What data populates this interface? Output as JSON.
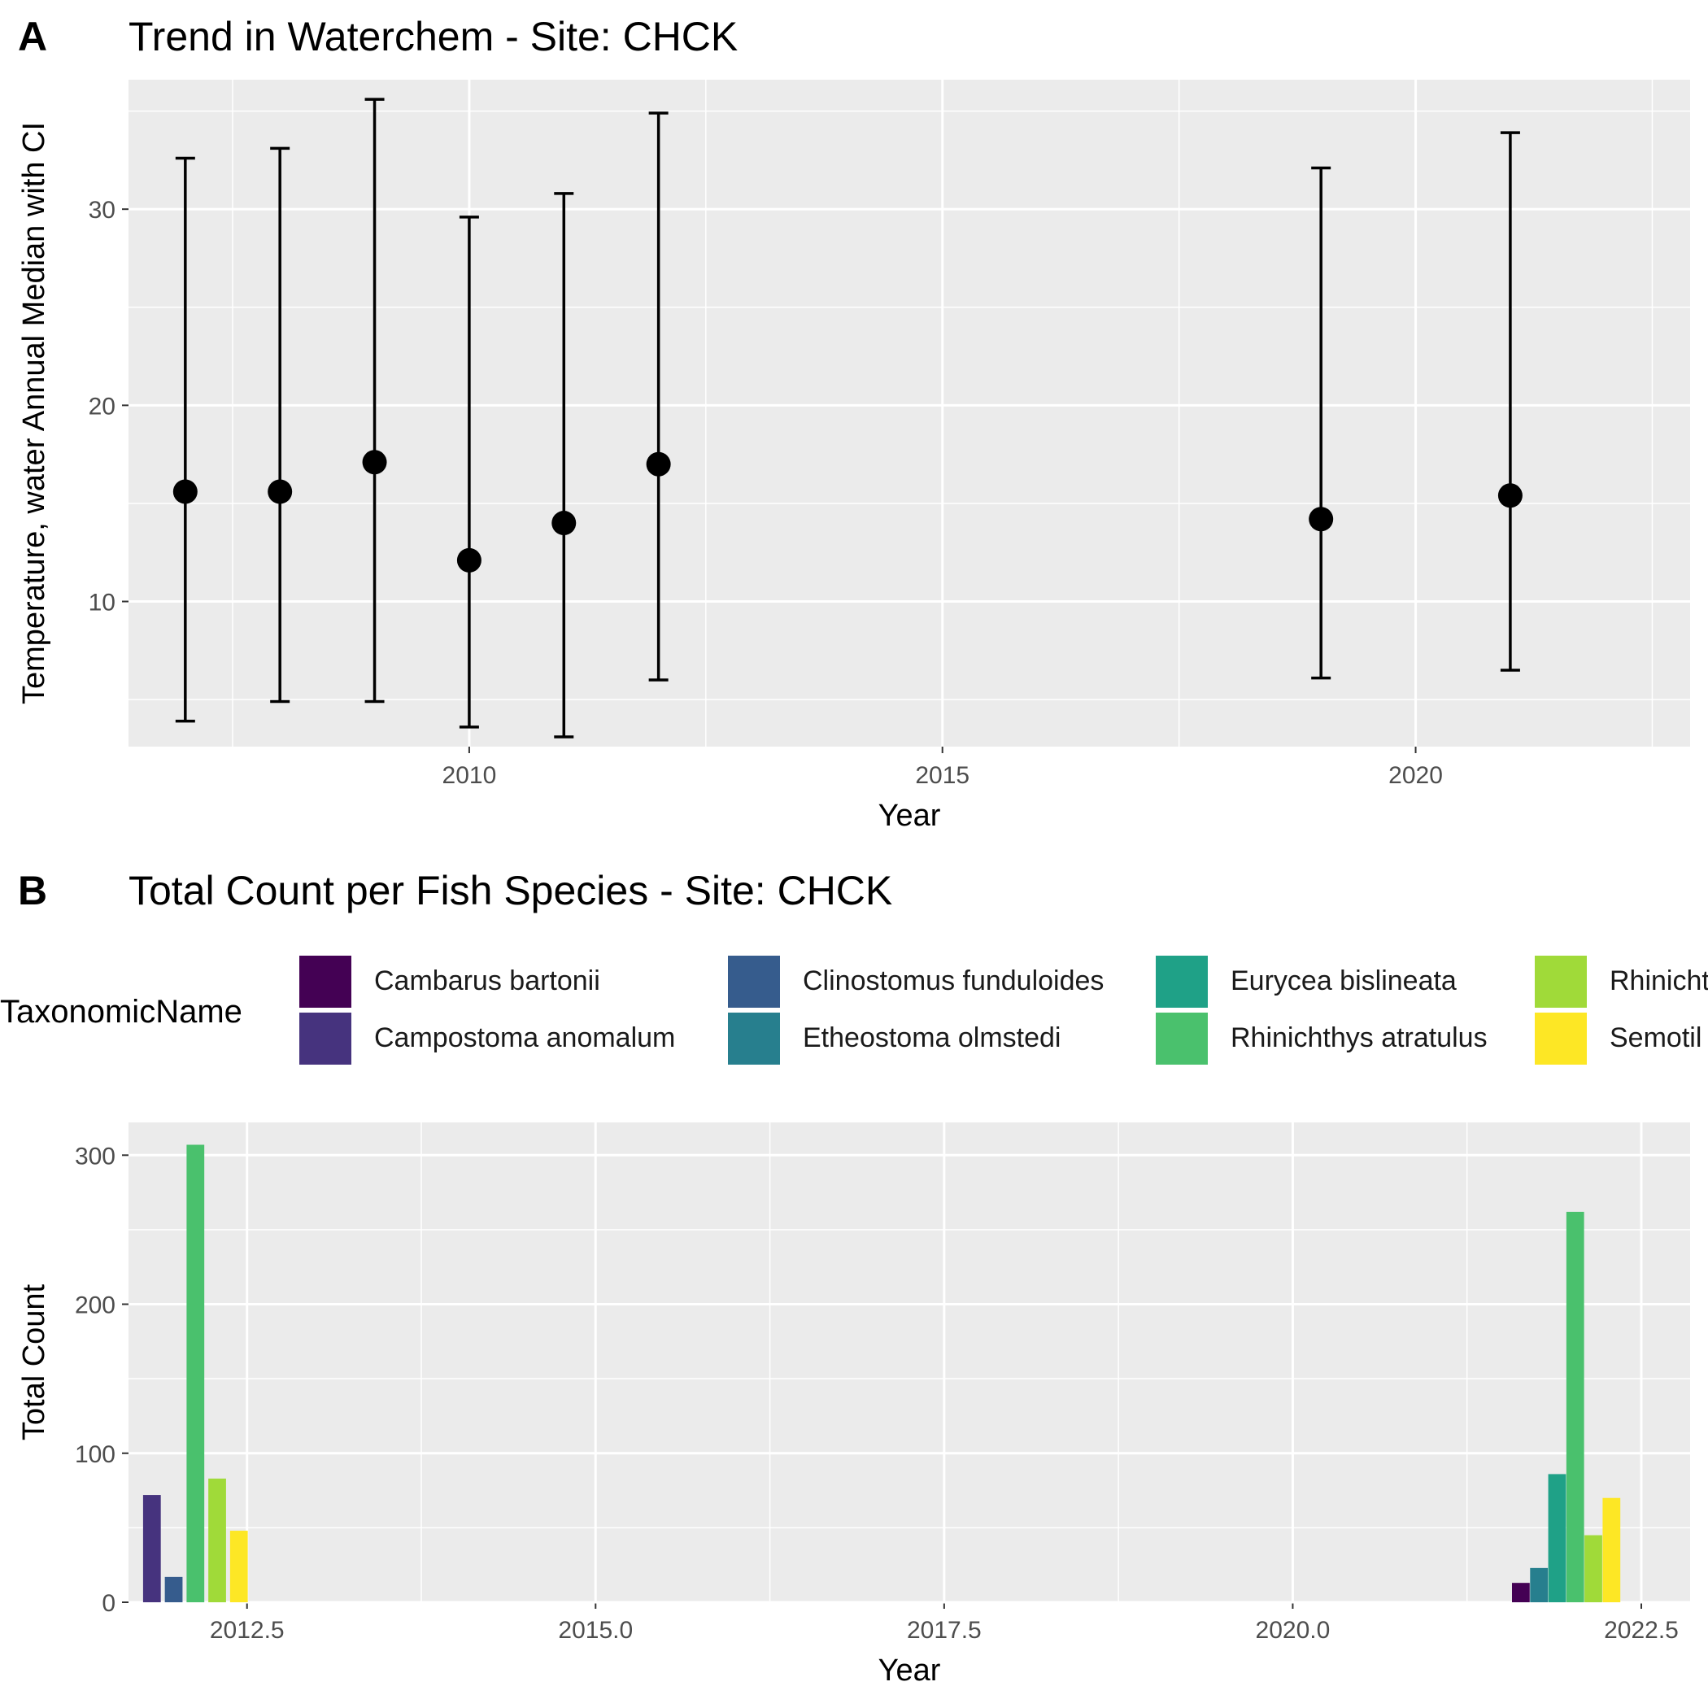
{
  "panel_a": {
    "tag": "A",
    "title": "Trend in Waterchem - Site: CHCK",
    "xlabel": "Year",
    "ylabel": "Temperature, water Annual Median with CI"
  },
  "panel_b": {
    "tag": "B",
    "title": "Total Count per Fish Species - Site: CHCK",
    "xlabel": "Year",
    "ylabel": "Total Count",
    "legend_title": "TaxonomicName"
  },
  "chart_data": [
    {
      "type": "scatter",
      "title": "Trend in Waterchem - Site: CHCK",
      "xlabel": "Year",
      "ylabel": "Temperature, water Annual Median with CI",
      "xlim": [
        2006.4,
        2022.9
      ],
      "ylim": [
        2.6,
        36.6
      ],
      "xticks": [
        2010,
        2015,
        2020
      ],
      "yticks": [
        10,
        20,
        30
      ],
      "grid": true,
      "points": [
        {
          "x": 2007,
          "y": 15.6,
          "lo": 3.9,
          "hi": 32.6
        },
        {
          "x": 2008,
          "y": 15.6,
          "lo": 4.9,
          "hi": 33.1
        },
        {
          "x": 2009,
          "y": 17.1,
          "lo": 4.9,
          "hi": 35.6
        },
        {
          "x": 2010,
          "y": 12.1,
          "lo": 3.6,
          "hi": 29.6
        },
        {
          "x": 2011,
          "y": 14.0,
          "lo": 3.1,
          "hi": 30.8
        },
        {
          "x": 2012,
          "y": 17.0,
          "lo": 6.0,
          "hi": 34.9
        },
        {
          "x": 2019,
          "y": 14.2,
          "lo": 6.1,
          "hi": 32.1
        },
        {
          "x": 2021,
          "y": 15.4,
          "lo": 6.5,
          "hi": 33.9
        }
      ],
      "colors": {
        "point": "#000000",
        "panel": "#ebebeb",
        "grid": "#ffffff"
      }
    },
    {
      "type": "bar",
      "title": "Total Count per Fish Species - Site: CHCK",
      "xlabel": "Year",
      "ylabel": "Total Count",
      "xlim": [
        2011.65,
        2022.85
      ],
      "ylim": [
        0,
        322
      ],
      "xticks": [
        2012.5,
        2015.0,
        2017.5,
        2020.0,
        2022.5
      ],
      "xtick_labels": [
        "2012.5",
        "2015.0",
        "2017.5",
        "2020.0",
        "2022.5"
      ],
      "yticks": [
        0,
        100,
        200,
        300
      ],
      "grid": true,
      "legend_title": "TaxonomicName",
      "legend_position": "top",
      "series": [
        {
          "name": "Cambarus bartonii",
          "color": "#440154"
        },
        {
          "name": "Campostoma anomalum",
          "color": "#46337e"
        },
        {
          "name": "Clinostomus funduloides",
          "color": "#365c8d"
        },
        {
          "name": "Etheostoma olmstedi",
          "color": "#277f8e"
        },
        {
          "name": "Eurycea bislineata",
          "color": "#1fa187"
        },
        {
          "name": "Rhinichthys atratulus",
          "color": "#4ac16d"
        },
        {
          "name": "Rhinichthys cataractae",
          "label": "Rhinicht",
          "color": "#a0da39"
        },
        {
          "name": "Semotilus atromaculatus",
          "label": "Semotil",
          "color": "#fde725"
        }
      ],
      "bars": [
        {
          "x": 2011.818,
          "species": "Campostoma anomalum",
          "value": 72
        },
        {
          "x": 2011.974,
          "species": "Clinostomus funduloides",
          "value": 17
        },
        {
          "x": 2012.13,
          "species": "Rhinichthys atratulus",
          "value": 307
        },
        {
          "x": 2012.286,
          "species": "Rhinichthys cataractae",
          "value": 83
        },
        {
          "x": 2012.442,
          "species": "Semotilus atromaculatus",
          "value": 48
        },
        {
          "x": 2021.636,
          "species": "Cambarus bartonii",
          "value": 13
        },
        {
          "x": 2021.766,
          "species": "Etheostoma olmstedi",
          "value": 23
        },
        {
          "x": 2021.896,
          "species": "Eurycea bislineata",
          "value": 86
        },
        {
          "x": 2022.026,
          "species": "Rhinichthys atratulus",
          "value": 262
        },
        {
          "x": 2022.156,
          "species": "Rhinichthys cataractae",
          "value": 45
        },
        {
          "x": 2022.286,
          "species": "Semotilus atromaculatus",
          "value": 70
        }
      ]
    }
  ]
}
